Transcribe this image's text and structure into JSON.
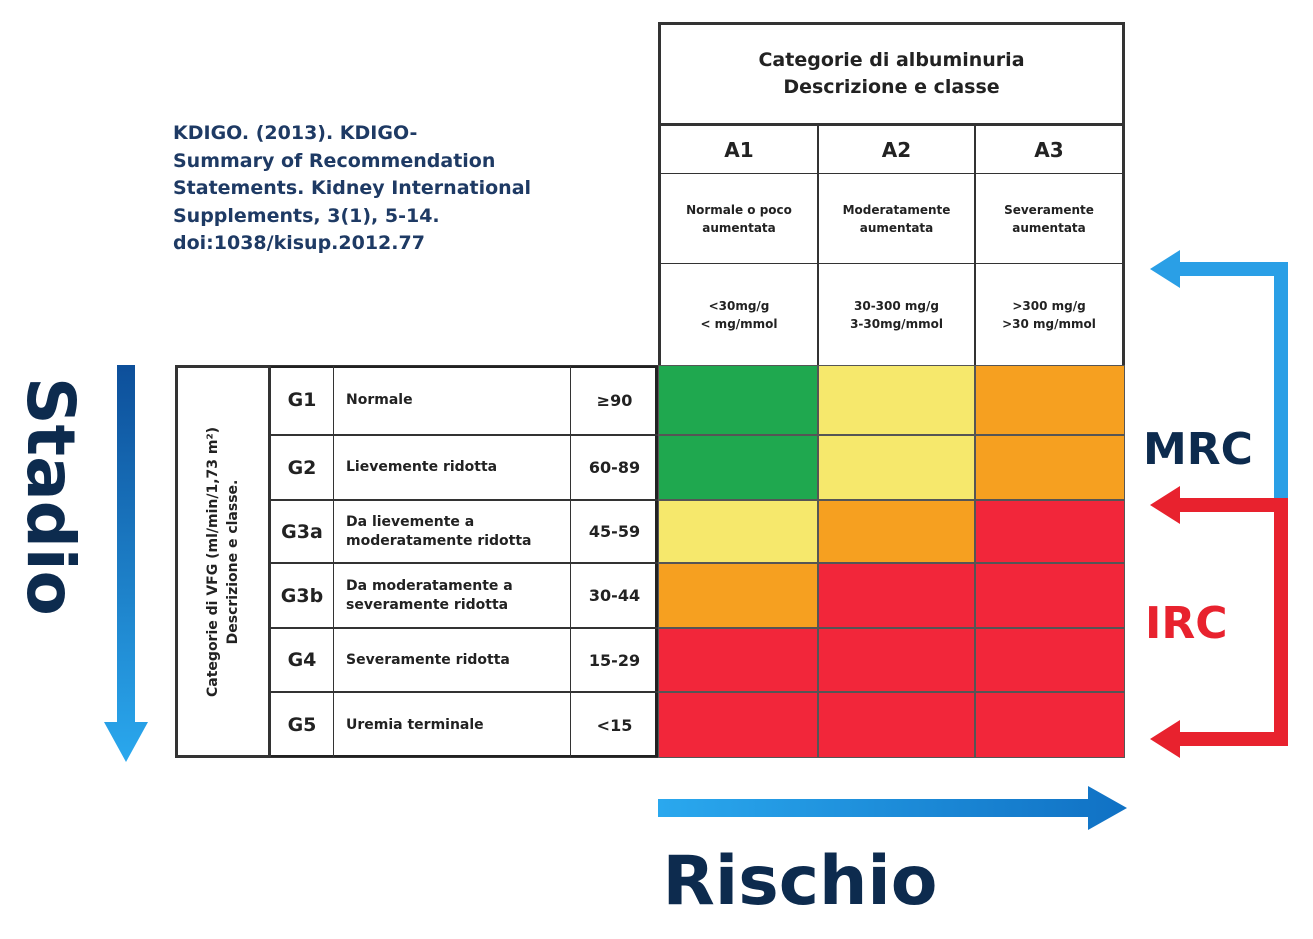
{
  "citation": [
    "KDIGO. (2013). KDIGO-",
    "Summary of Recommendation",
    "Statements. Kidney International",
    "Supplements, 3(1), 5-14.",
    "doi:1038/kisup.2012.77"
  ],
  "albuminuria": {
    "title_line1": "Categorie di albuminuria",
    "title_line2": "Descrizione e classe",
    "columns": [
      {
        "class": "A1",
        "desc1": "Normale o poco",
        "desc2": "aumentata",
        "range1": "<30mg/g",
        "range2": "< mg/mmol"
      },
      {
        "class": "A2",
        "desc1": "Moderatamente",
        "desc2": "aumentata",
        "range1": "30-300 mg/g",
        "range2": "3-30mg/mmol"
      },
      {
        "class": "A3",
        "desc1": "Severamente",
        "desc2": "aumentata",
        "range1": ">300 mg/g",
        "range2": ">30 mg/mmol"
      }
    ]
  },
  "gfr": {
    "label_line1": "Categorie di VFG (ml/min/1,73 m²)",
    "label_line2": "Descrizione e classe.",
    "rows": [
      {
        "class": "G1",
        "desc": "Normale",
        "range": "≥90",
        "colors": [
          "green",
          "yellow",
          "orange"
        ]
      },
      {
        "class": "G2",
        "desc": "Lievemente ridotta",
        "range": "60-89",
        "colors": [
          "green",
          "yellow",
          "orange"
        ]
      },
      {
        "class": "G3a",
        "desc": "Da lievemente a moderatamente ridotta",
        "range": "45-59",
        "colors": [
          "yellow",
          "orange",
          "red"
        ]
      },
      {
        "class": "G3b",
        "desc": "Da moderatamente a severamente ridotta",
        "range": "30-44",
        "colors": [
          "orange",
          "red",
          "red"
        ]
      },
      {
        "class": "G4",
        "desc": "Severamente ridotta",
        "range": "15-29",
        "colors": [
          "red",
          "red",
          "red"
        ]
      },
      {
        "class": "G5",
        "desc": "Uremia terminale",
        "range": "<15",
        "colors": [
          "red",
          "red",
          "red"
        ]
      }
    ]
  },
  "palette": {
    "green": "#1fa84f",
    "yellow": "#f6e86c",
    "orange": "#f6a020",
    "red": "#f2263a",
    "navy": "#0d2b4e",
    "blue": "#1d8fd8",
    "irc_red": "#e8222e"
  },
  "labels": {
    "stadio": "Stadio",
    "rischio": "Rischio",
    "mrc": "MRC",
    "irc": "IRC"
  }
}
